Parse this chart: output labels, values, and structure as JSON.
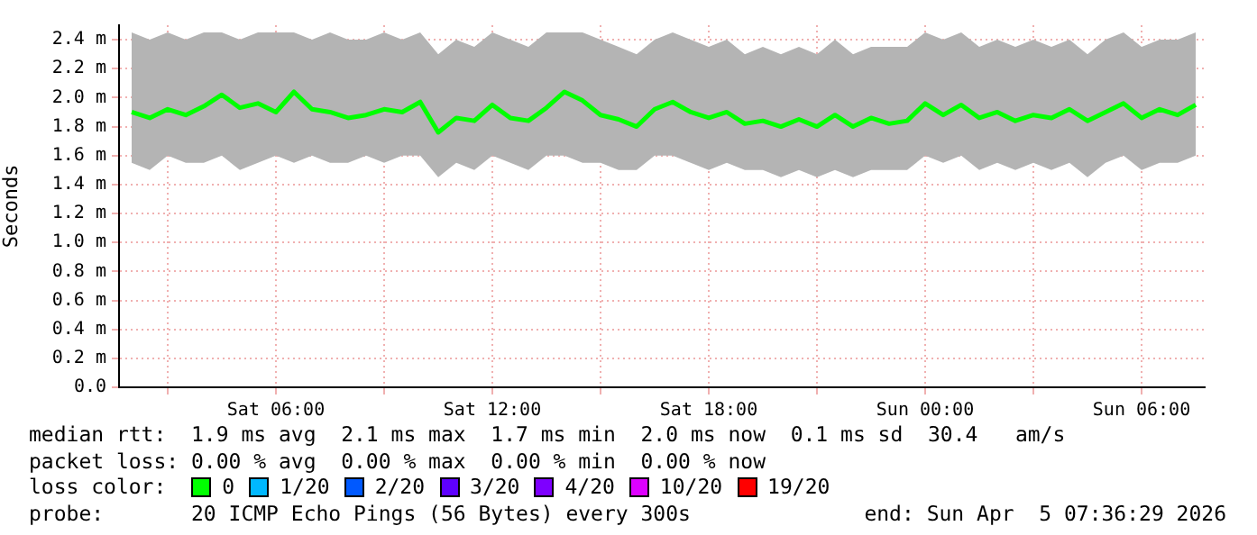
{
  "chart_data": {
    "type": "line",
    "ylabel": "Seconds",
    "legend_title": "loss color:",
    "legend": "bottom",
    "grid": true,
    "marker": "none",
    "line_style": "solid",
    "xlim": [
      "2026-04-04T01:39",
      "2026-04-05T07:45"
    ],
    "xticks": [
      {
        "value": "2026-04-04T03:00",
        "label": null
      },
      {
        "value": "2026-04-04T06:00",
        "label": "Sat 06:00"
      },
      {
        "value": "2026-04-04T09:00",
        "label": null
      },
      {
        "value": "2026-04-04T12:00",
        "label": "Sat 12:00"
      },
      {
        "value": "2026-04-04T15:00",
        "label": null
      },
      {
        "value": "2026-04-04T18:00",
        "label": "Sat 18:00"
      },
      {
        "value": "2026-04-04T21:00",
        "label": null
      },
      {
        "value": "2026-04-05T00:00",
        "label": "Sun 00:00"
      },
      {
        "value": "2026-04-05T03:00",
        "label": null
      },
      {
        "value": "2026-04-05T06:00",
        "label": "Sun 06:00"
      }
    ],
    "ylim": [
      0,
      2.5
    ],
    "yticks": [
      {
        "value": 0,
        "label": "0.0"
      },
      {
        "value": 0.2,
        "label": "0.2 m"
      },
      {
        "value": 0.4,
        "label": "0.4 m"
      },
      {
        "value": 0.6,
        "label": "0.6 m"
      },
      {
        "value": 0.8,
        "label": "0.8 m"
      },
      {
        "value": 1,
        "label": "1.0 m"
      },
      {
        "value": 1.2,
        "label": "1.2 m"
      },
      {
        "value": 1.4,
        "label": "1.4 m"
      },
      {
        "value": 1.6,
        "label": "1.6 m"
      },
      {
        "value": 1.8,
        "label": "1.8 m"
      },
      {
        "value": 2,
        "label": "2.0 m"
      },
      {
        "value": 2.2,
        "label": "2.2 m"
      },
      {
        "value": 2.4,
        "label": "2.4 m"
      }
    ],
    "series": [
      {
        "name": "0",
        "color": "#00ff00",
        "x": [
          "2026-04-04T02:00",
          "2026-04-04T02:30",
          "2026-04-04T03:00",
          "2026-04-04T03:30",
          "2026-04-04T04:00",
          "2026-04-04T04:30",
          "2026-04-04T05:00",
          "2026-04-04T05:30",
          "2026-04-04T06:00",
          "2026-04-04T06:30",
          "2026-04-04T07:00",
          "2026-04-04T07:30",
          "2026-04-04T08:00",
          "2026-04-04T08:30",
          "2026-04-04T09:00",
          "2026-04-04T09:30",
          "2026-04-04T10:00",
          "2026-04-04T10:30",
          "2026-04-04T11:00",
          "2026-04-04T11:30",
          "2026-04-04T12:00",
          "2026-04-04T12:30",
          "2026-04-04T13:00",
          "2026-04-04T13:30",
          "2026-04-04T14:00",
          "2026-04-04T14:30",
          "2026-04-04T15:00",
          "2026-04-04T15:30",
          "2026-04-04T16:00",
          "2026-04-04T16:30",
          "2026-04-04T17:00",
          "2026-04-04T17:30",
          "2026-04-04T18:00",
          "2026-04-04T18:30",
          "2026-04-04T19:00",
          "2026-04-04T19:30",
          "2026-04-04T20:00",
          "2026-04-04T20:30",
          "2026-04-04T21:00",
          "2026-04-04T21:30",
          "2026-04-04T22:00",
          "2026-04-04T22:30",
          "2026-04-04T23:00",
          "2026-04-04T23:30",
          "2026-04-05T00:00",
          "2026-04-05T00:30",
          "2026-04-05T01:00",
          "2026-04-05T01:30",
          "2026-04-05T02:00",
          "2026-04-05T02:30",
          "2026-04-05T03:00",
          "2026-04-05T03:30",
          "2026-04-05T04:00",
          "2026-04-05T04:30",
          "2026-04-05T05:00",
          "2026-04-05T05:30",
          "2026-04-05T06:00",
          "2026-04-05T06:30",
          "2026-04-05T07:00",
          "2026-04-05T07:30"
        ],
        "values": [
          1.9,
          1.86,
          1.92,
          1.88,
          1.94,
          2.02,
          1.93,
          1.96,
          1.9,
          2.04,
          1.92,
          1.9,
          1.86,
          1.88,
          1.92,
          1.9,
          1.97,
          1.76,
          1.86,
          1.84,
          1.95,
          1.86,
          1.84,
          1.93,
          2.04,
          1.98,
          1.88,
          1.85,
          1.8,
          1.92,
          1.97,
          1.9,
          1.86,
          1.9,
          1.82,
          1.84,
          1.8,
          1.85,
          1.8,
          1.88,
          1.8,
          1.86,
          1.82,
          1.84,
          1.96,
          1.88,
          1.95,
          1.86,
          1.9,
          1.84,
          1.88,
          1.86,
          1.92,
          1.84,
          1.9,
          1.96,
          1.86,
          1.92,
          1.88,
          1.95
        ],
        "lower": [
          1.55,
          1.5,
          1.6,
          1.55,
          1.55,
          1.6,
          1.5,
          1.55,
          1.6,
          1.55,
          1.6,
          1.55,
          1.55,
          1.6,
          1.55,
          1.6,
          1.6,
          1.45,
          1.55,
          1.5,
          1.6,
          1.55,
          1.5,
          1.6,
          1.6,
          1.55,
          1.55,
          1.5,
          1.5,
          1.6,
          1.6,
          1.55,
          1.5,
          1.55,
          1.5,
          1.5,
          1.45,
          1.5,
          1.45,
          1.5,
          1.45,
          1.5,
          1.5,
          1.5,
          1.6,
          1.55,
          1.6,
          1.5,
          1.55,
          1.5,
          1.55,
          1.5,
          1.55,
          1.45,
          1.55,
          1.6,
          1.5,
          1.55,
          1.55,
          1.6
        ],
        "upper": [
          2.45,
          2.4,
          2.45,
          2.4,
          2.45,
          2.45,
          2.4,
          2.45,
          2.45,
          2.45,
          2.4,
          2.45,
          2.4,
          2.4,
          2.45,
          2.4,
          2.45,
          2.3,
          2.4,
          2.35,
          2.45,
          2.4,
          2.35,
          2.45,
          2.45,
          2.45,
          2.4,
          2.35,
          2.3,
          2.4,
          2.45,
          2.4,
          2.35,
          2.4,
          2.3,
          2.35,
          2.3,
          2.35,
          2.3,
          2.4,
          2.3,
          2.35,
          2.35,
          2.35,
          2.45,
          2.4,
          2.45,
          2.35,
          2.4,
          2.35,
          2.4,
          2.35,
          2.4,
          2.3,
          2.4,
          2.45,
          2.35,
          2.4,
          2.4,
          2.45
        ]
      },
      {
        "name": "1/20",
        "color": "#00b8ff"
      },
      {
        "name": "2/20",
        "color": "#0059ff"
      },
      {
        "name": "3/20",
        "color": "#5e00ff"
      },
      {
        "name": "4/20",
        "color": "#7e00ff"
      },
      {
        "name": "10/20",
        "color": "#dd00ff"
      },
      {
        "name": "19/20",
        "color": "#ff0000"
      }
    ],
    "annotations": [
      "median rtt:  1.9 ms avg  2.1 ms max  1.7 ms min  2.0 ms now  0.1 ms sd  30.4   am/s",
      "packet loss: 0.00 % avg  0.00 % max  0.00 % min  0.00 % now",
      "probe:       20 ICMP Echo Pings (56 Bytes) every 300s",
      "end: Sun Apr  5 07:36:29 2026"
    ]
  }
}
